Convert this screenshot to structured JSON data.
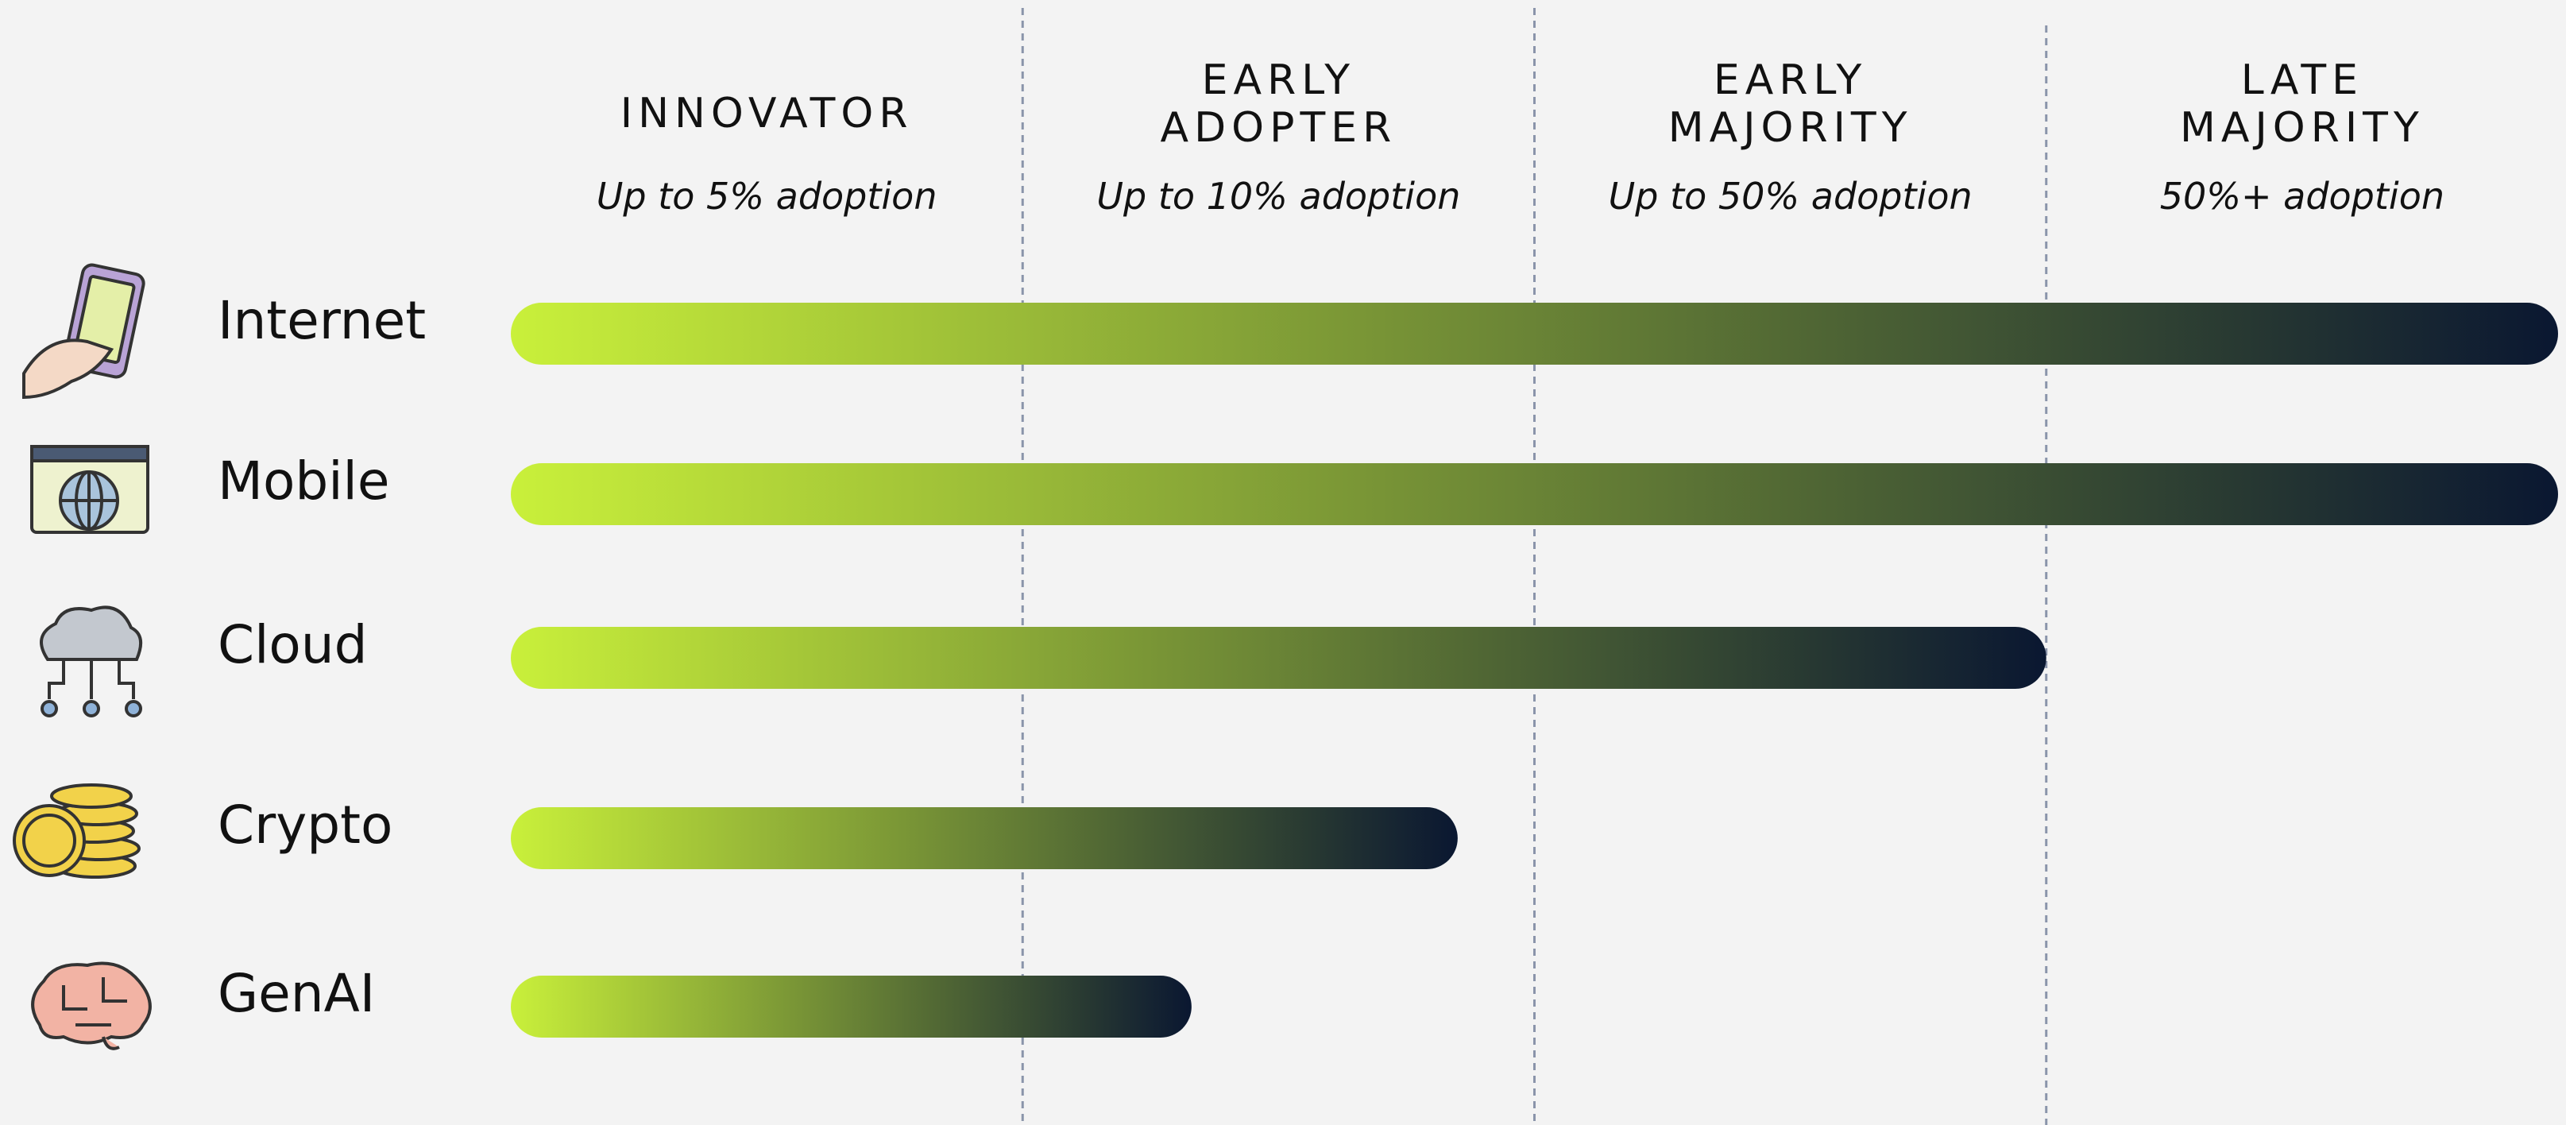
{
  "chart_data": {
    "type": "bar",
    "orientation": "horizontal",
    "stages": [
      {
        "name": [
          "INNOVATOR"
        ],
        "subtitle": "Up to 5% adoption"
      },
      {
        "name": [
          "EARLY",
          "ADOPTER"
        ],
        "subtitle": "Up to 10% adoption"
      },
      {
        "name": [
          "EARLY",
          "MAJORITY"
        ],
        "subtitle": "Up to 50% adoption"
      },
      {
        "name": [
          "LATE",
          "MAJORITY"
        ],
        "subtitle": "50%+ adoption"
      }
    ],
    "categories": [
      "Internet",
      "Mobile",
      "Cloud",
      "Crypto",
      "GenAI"
    ],
    "values": [
      4,
      4,
      3,
      1.85,
      1.33
    ],
    "xlim": [
      0,
      4
    ],
    "stage_boundaries": [
      1,
      2,
      3
    ],
    "color_start": "#c9f03a",
    "color_end": "#0a1731"
  }
}
